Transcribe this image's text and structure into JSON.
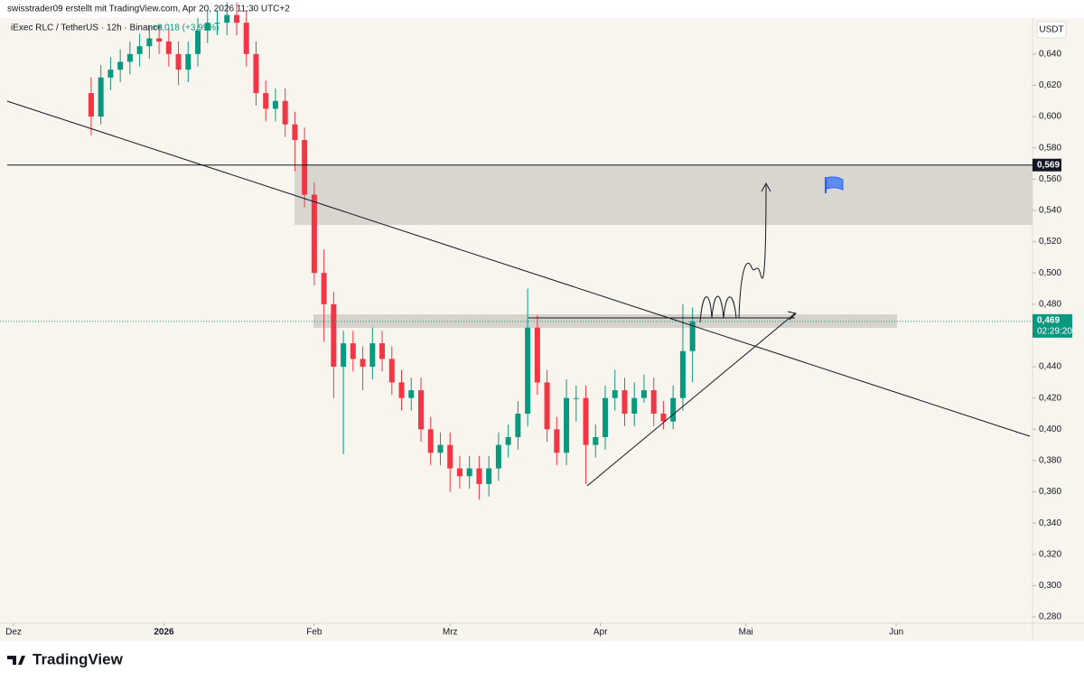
{
  "header": {
    "credit": "swisstrader09 erstellt mit TradingView.com, Apr 20, 2026 11:30 UTC+2",
    "footer_logo": "TradingView"
  },
  "chart_data": {
    "type": "candlestick",
    "title": "iExec RLC / TetherUS · 12h · Binance",
    "change": "+0,018 (+3,99%)",
    "currency": "USDT",
    "x": [
      16,
      18,
      20,
      22,
      24,
      26,
      28,
      30,
      32,
      34,
      36,
      38,
      40,
      42,
      44,
      46,
      48,
      50,
      52,
      54,
      56,
      58,
      60,
      62,
      64,
      66,
      68,
      70,
      72,
      74,
      76,
      78,
      80,
      82,
      84,
      86,
      88,
      90,
      92,
      94,
      96,
      98,
      100,
      102,
      104,
      106,
      108,
      110,
      112,
      114,
      116,
      118,
      120,
      122,
      124,
      126,
      128,
      130,
      132,
      134,
      136,
      138,
      140
    ],
    "open": [
      0.615,
      0.6,
      0.625,
      0.63,
      0.635,
      0.64,
      0.645,
      0.65,
      0.648,
      0.64,
      0.63,
      0.64,
      0.655,
      0.66,
      0.66,
      0.665,
      0.66,
      0.64,
      0.615,
      0.605,
      0.61,
      0.595,
      0.585,
      0.55,
      0.5,
      0.48,
      0.44,
      0.455,
      0.445,
      0.44,
      0.455,
      0.445,
      0.43,
      0.42,
      0.425,
      0.4,
      0.385,
      0.39,
      0.375,
      0.37,
      0.375,
      0.365,
      0.375,
      0.39,
      0.395,
      0.41,
      0.465,
      0.43,
      0.4,
      0.385,
      0.42,
      0.42,
      0.39,
      0.395,
      0.42,
      0.425,
      0.41,
      0.42,
      0.425,
      0.41,
      0.405,
      0.42,
      0.45
    ],
    "high": [
      0.625,
      0.633,
      0.638,
      0.643,
      0.648,
      0.653,
      0.658,
      0.658,
      0.656,
      0.648,
      0.648,
      0.663,
      0.668,
      0.668,
      0.673,
      0.673,
      0.668,
      0.648,
      0.623,
      0.618,
      0.618,
      0.603,
      0.593,
      0.558,
      0.515,
      0.488,
      0.463,
      0.463,
      0.453,
      0.465,
      0.463,
      0.453,
      0.438,
      0.433,
      0.433,
      0.408,
      0.398,
      0.398,
      0.383,
      0.383,
      0.383,
      0.383,
      0.398,
      0.403,
      0.418,
      0.49,
      0.473,
      0.438,
      0.408,
      0.432,
      0.428,
      0.428,
      0.403,
      0.428,
      0.438,
      0.433,
      0.43,
      0.435,
      0.433,
      0.418,
      0.428,
      0.48,
      0.478
    ],
    "low": [
      0.588,
      0.595,
      0.617,
      0.622,
      0.627,
      0.632,
      0.637,
      0.64,
      0.632,
      0.62,
      0.622,
      0.632,
      0.647,
      0.652,
      0.652,
      0.652,
      0.632,
      0.607,
      0.597,
      0.597,
      0.587,
      0.565,
      0.542,
      0.492,
      0.456,
      0.42,
      0.384,
      0.437,
      0.425,
      0.432,
      0.437,
      0.422,
      0.412,
      0.412,
      0.392,
      0.377,
      0.377,
      0.36,
      0.362,
      0.362,
      0.355,
      0.357,
      0.367,
      0.382,
      0.387,
      0.402,
      0.422,
      0.392,
      0.377,
      0.377,
      0.405,
      0.365,
      0.382,
      0.387,
      0.412,
      0.402,
      0.402,
      0.417,
      0.402,
      0.4,
      0.4,
      0.412,
      0.43
    ],
    "close": [
      0.6,
      0.625,
      0.63,
      0.635,
      0.64,
      0.645,
      0.65,
      0.648,
      0.64,
      0.63,
      0.64,
      0.655,
      0.66,
      0.66,
      0.665,
      0.66,
      0.64,
      0.615,
      0.605,
      0.61,
      0.595,
      0.585,
      0.55,
      0.5,
      0.48,
      0.44,
      0.455,
      0.445,
      0.44,
      0.455,
      0.445,
      0.43,
      0.42,
      0.425,
      0.4,
      0.385,
      0.39,
      0.375,
      0.37,
      0.375,
      0.365,
      0.375,
      0.39,
      0.395,
      0.41,
      0.465,
      0.43,
      0.4,
      0.385,
      0.42,
      0.42,
      0.39,
      0.395,
      0.42,
      0.425,
      0.41,
      0.42,
      0.425,
      0.41,
      0.405,
      0.42,
      0.45,
      0.469
    ],
    "up_color": "#089981",
    "down_color": "#f23645",
    "last_price": {
      "value": 0.469,
      "label": "0,469"
    },
    "countdown": "02:29:20",
    "price_line": {
      "value": 0.569,
      "label": "0,569"
    },
    "xlim": [
      -2.8,
      210.1
    ],
    "xticks": [
      {
        "value": 0,
        "label": "Dez"
      },
      {
        "value": 31,
        "label": "2026"
      },
      {
        "value": 62,
        "label": "Feb"
      },
      {
        "value": 90,
        "label": "Mrz"
      },
      {
        "value": 121,
        "label": "Apr"
      },
      {
        "value": 151,
        "label": "Mai"
      },
      {
        "value": 182,
        "label": "Jun"
      }
    ],
    "ylim": [
      0.276,
      0.663
    ],
    "yticks": [
      {
        "value": 0.28,
        "label": "0,280"
      },
      {
        "value": 0.3,
        "label": "0,300"
      },
      {
        "value": 0.32,
        "label": "0,320"
      },
      {
        "value": 0.34,
        "label": "0,340"
      },
      {
        "value": 0.36,
        "label": "0,360"
      },
      {
        "value": 0.38,
        "label": "0,380"
      },
      {
        "value": 0.4,
        "label": "0,400"
      },
      {
        "value": 0.42,
        "label": "0,420"
      },
      {
        "value": 0.44,
        "label": "0,440"
      },
      {
        "value": 0.48,
        "label": "0,480"
      },
      {
        "value": 0.5,
        "label": "0,500"
      },
      {
        "value": 0.52,
        "label": "0,520"
      },
      {
        "value": 0.54,
        "label": "0,540"
      },
      {
        "value": 0.56,
        "label": "0,560"
      },
      {
        "value": 0.58,
        "label": "0,580"
      },
      {
        "value": 0.6,
        "label": "0,600"
      },
      {
        "value": 0.62,
        "label": "0,620"
      },
      {
        "value": 0.64,
        "label": "0,640"
      }
    ]
  }
}
